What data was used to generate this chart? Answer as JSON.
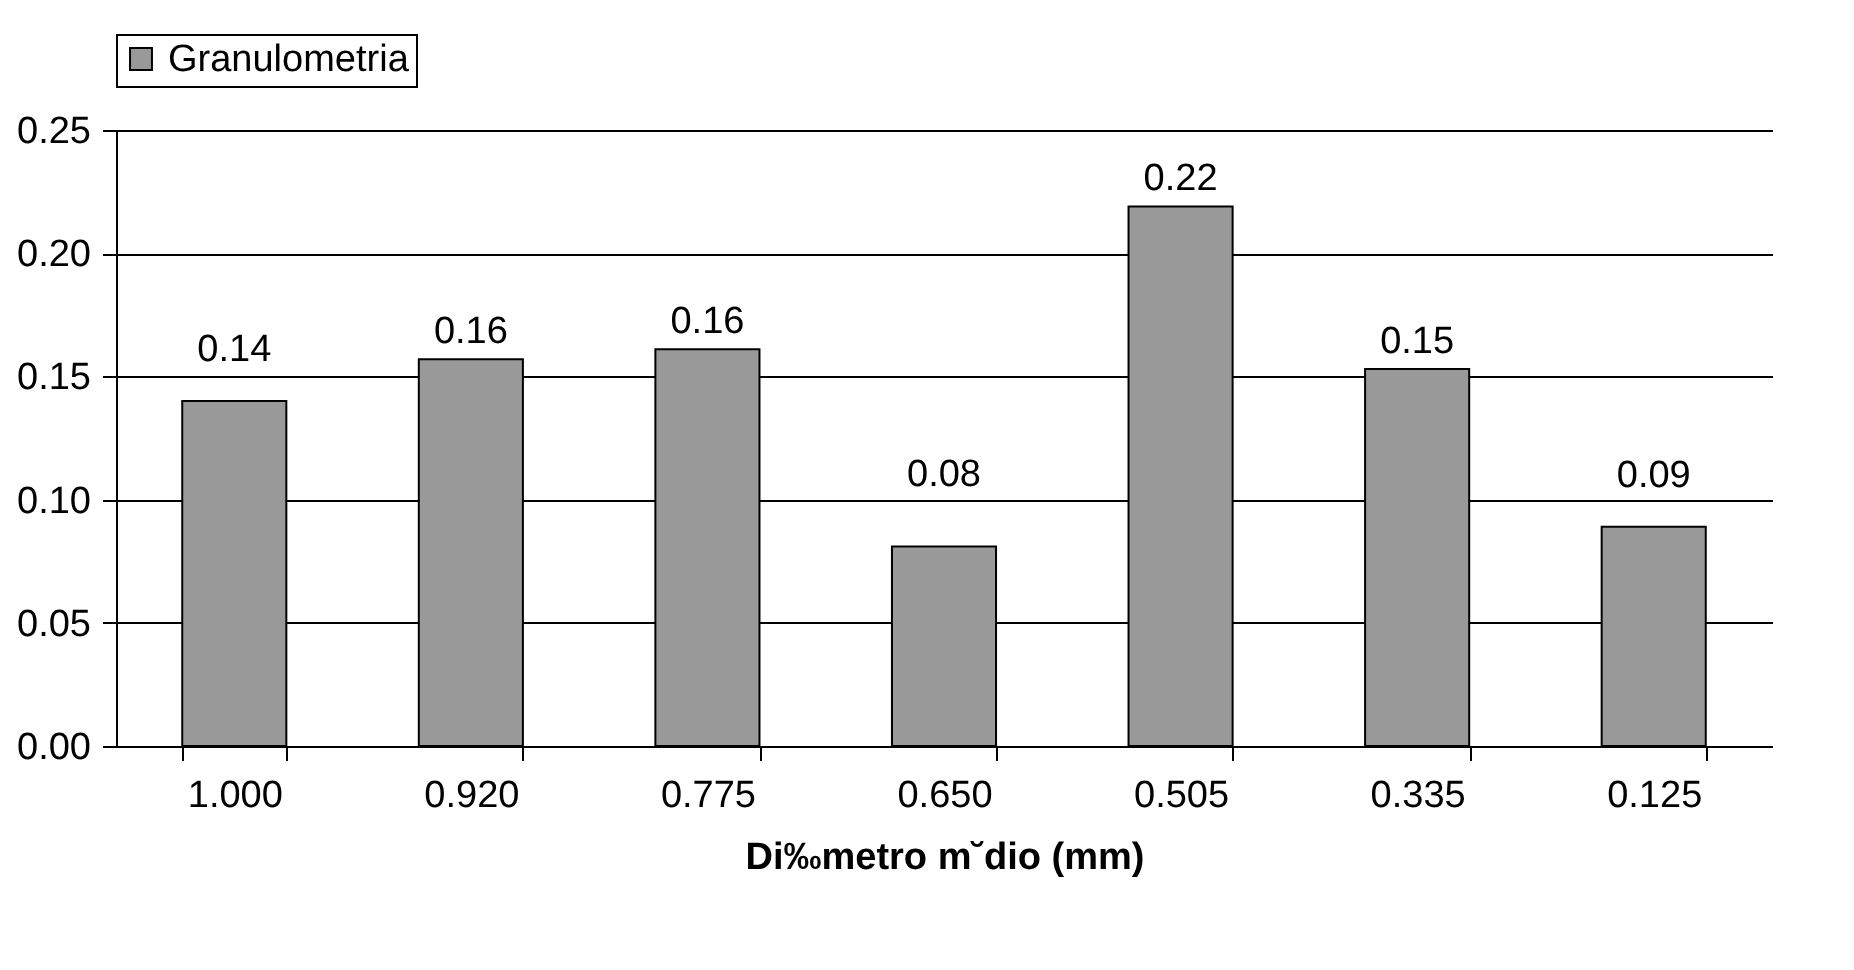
{
  "chart_data": {
    "type": "bar",
    "xlabel": "Di‰metro m˘dio (mm)",
    "categories": [
      "1.000",
      "0.920",
      "0.775",
      "0.650",
      "0.505",
      "0.335",
      "0.125"
    ],
    "series": [
      {
        "name": "Granulometria",
        "color": "#999999",
        "values": [
          0.14,
          0.157,
          0.161,
          0.081,
          0.219,
          0.153,
          0.089
        ],
        "value_labels": [
          "0.14",
          "0.16",
          "0.16",
          "0.08",
          "0.22",
          "0.15",
          "0.09"
        ]
      }
    ],
    "ylim": [
      0,
      0.25
    ],
    "yticks": [
      {
        "value": 0,
        "label": "0.00"
      },
      {
        "value": 0.05,
        "label": "0.05"
      },
      {
        "value": 0.1,
        "label": "0.10"
      },
      {
        "value": 0.15,
        "label": "0.15"
      },
      {
        "value": 0.2,
        "label": "0.20"
      },
      {
        "value": 0.25,
        "label": "0.25"
      }
    ],
    "grid": "y",
    "legend": "top"
  }
}
